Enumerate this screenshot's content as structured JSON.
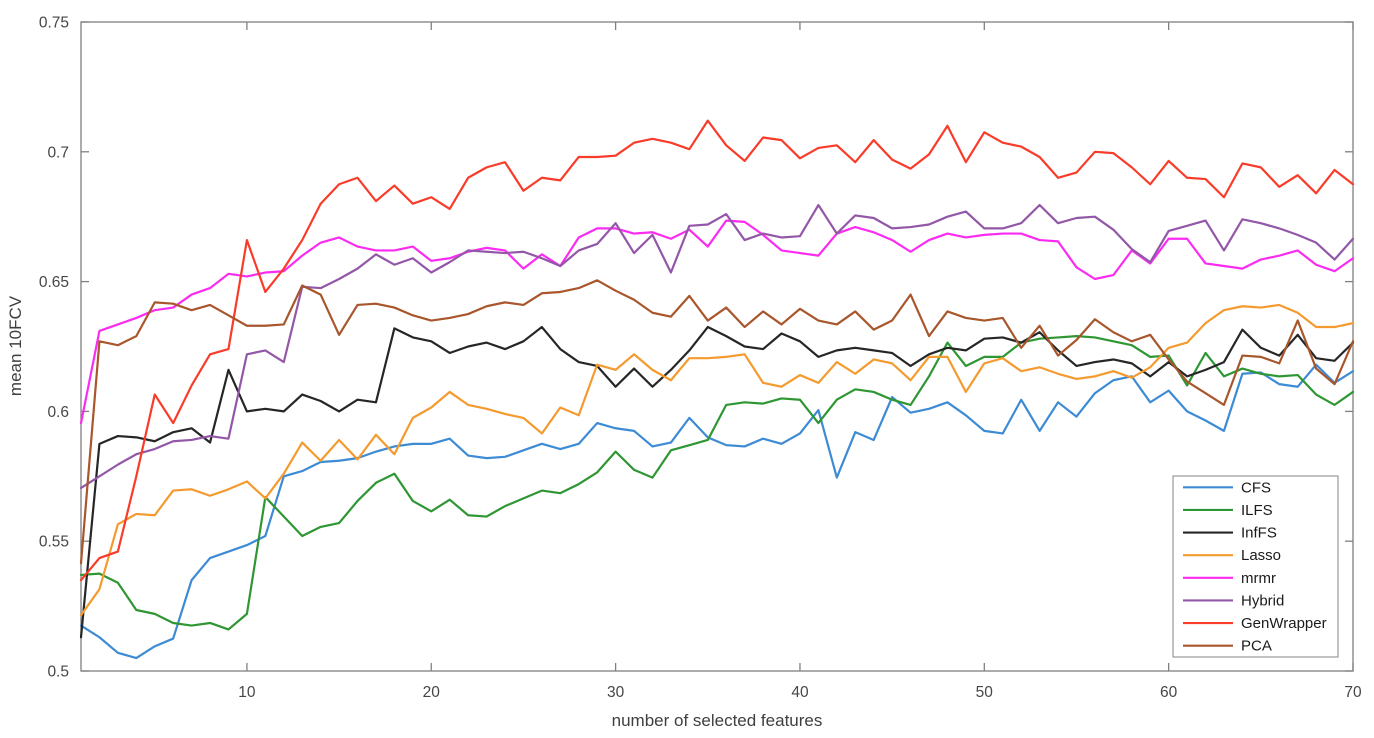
{
  "figure": {
    "background": "#ffffff",
    "axis_color": "#808080",
    "tick_label_color": "#464646",
    "axis_label_color": "#3f3f3f",
    "legend_border_color": "#999999",
    "legend_text_color": "#1a1a1a"
  },
  "chart_data": {
    "type": "line",
    "title": "",
    "xlabel": "number of selected features",
    "ylabel": "mean 10FCV",
    "xlim": [
      1,
      70
    ],
    "ylim": [
      0.5,
      0.75
    ],
    "xticks": [
      10,
      20,
      30,
      40,
      50,
      60,
      70
    ],
    "yticks": [
      0.5,
      0.55,
      0.6,
      0.65,
      0.7,
      0.75
    ],
    "grid": false,
    "box": true,
    "legend_position": "bottom-right",
    "line_width": 2.2,
    "x": [
      1,
      2,
      3,
      4,
      5,
      6,
      7,
      8,
      9,
      10,
      11,
      12,
      13,
      14,
      15,
      16,
      17,
      18,
      19,
      20,
      21,
      22,
      23,
      24,
      25,
      26,
      27,
      28,
      29,
      30,
      31,
      32,
      33,
      34,
      35,
      36,
      37,
      38,
      39,
      40,
      41,
      42,
      43,
      44,
      45,
      46,
      47,
      48,
      49,
      50,
      51,
      52,
      53,
      54,
      55,
      56,
      57,
      58,
      59,
      60,
      61,
      62,
      63,
      64,
      65,
      66,
      67,
      68,
      69,
      70
    ],
    "series": [
      {
        "name": "CFS",
        "color": "#3D8BD4",
        "values": [
          0.5175,
          0.513,
          0.507,
          0.505,
          0.5095,
          0.5125,
          0.535,
          0.5435,
          0.546,
          0.5485,
          0.552,
          0.575,
          0.577,
          0.5805,
          0.581,
          0.582,
          0.5845,
          0.5865,
          0.5875,
          0.5875,
          0.5895,
          0.583,
          0.582,
          0.5825,
          0.585,
          0.5875,
          0.5855,
          0.5875,
          0.5955,
          0.5935,
          0.5925,
          0.5865,
          0.588,
          0.5975,
          0.59,
          0.587,
          0.5865,
          0.5895,
          0.5875,
          0.5915,
          0.6005,
          0.5745,
          0.592,
          0.589,
          0.6055,
          0.5995,
          0.601,
          0.6035,
          0.5985,
          0.5925,
          0.5915,
          0.6045,
          0.5925,
          0.6035,
          0.598,
          0.607,
          0.612,
          0.6135,
          0.6035,
          0.608,
          0.6,
          0.5965,
          0.5925,
          0.6145,
          0.615,
          0.6105,
          0.6095,
          0.618,
          0.611,
          0.6155
        ]
      },
      {
        "name": "ILFS",
        "color": "#2E9632",
        "values": [
          0.537,
          0.5375,
          0.534,
          0.5235,
          0.522,
          0.5185,
          0.5175,
          0.5185,
          0.516,
          0.522,
          0.567,
          0.5595,
          0.552,
          0.5555,
          0.557,
          0.5655,
          0.5725,
          0.576,
          0.5655,
          0.5615,
          0.566,
          0.56,
          0.5595,
          0.5635,
          0.5665,
          0.5695,
          0.5685,
          0.572,
          0.5765,
          0.5845,
          0.5775,
          0.5745,
          0.585,
          0.587,
          0.589,
          0.6025,
          0.6035,
          0.603,
          0.605,
          0.6045,
          0.5955,
          0.6045,
          0.6085,
          0.6075,
          0.6045,
          0.6025,
          0.6135,
          0.6265,
          0.6175,
          0.621,
          0.621,
          0.6265,
          0.628,
          0.6285,
          0.629,
          0.6285,
          0.627,
          0.6255,
          0.621,
          0.6215,
          0.61,
          0.6225,
          0.6135,
          0.6165,
          0.6145,
          0.6135,
          0.614,
          0.6065,
          0.6025,
          0.6075
        ]
      },
      {
        "name": "InfFS",
        "color": "#262626",
        "values": [
          0.513,
          0.5875,
          0.5905,
          0.59,
          0.5885,
          0.592,
          0.5935,
          0.588,
          0.616,
          0.6,
          0.601,
          0.6,
          0.6065,
          0.604,
          0.6,
          0.6045,
          0.6035,
          0.632,
          0.6285,
          0.627,
          0.6225,
          0.625,
          0.6265,
          0.624,
          0.627,
          0.6325,
          0.624,
          0.619,
          0.6175,
          0.6095,
          0.6165,
          0.6095,
          0.616,
          0.6235,
          0.6325,
          0.629,
          0.625,
          0.624,
          0.63,
          0.627,
          0.621,
          0.6235,
          0.6245,
          0.6235,
          0.6225,
          0.6175,
          0.622,
          0.6245,
          0.6235,
          0.628,
          0.6285,
          0.6265,
          0.6305,
          0.6235,
          0.6175,
          0.619,
          0.62,
          0.6185,
          0.6135,
          0.619,
          0.6135,
          0.616,
          0.619,
          0.6315,
          0.6245,
          0.6215,
          0.6295,
          0.6205,
          0.6195,
          0.6265
        ]
      },
      {
        "name": "Lasso",
        "color": "#F49A2E",
        "values": [
          0.5215,
          0.5315,
          0.5565,
          0.5605,
          0.56,
          0.5695,
          0.57,
          0.5675,
          0.57,
          0.573,
          0.5665,
          0.576,
          0.588,
          0.581,
          0.589,
          0.5815,
          0.591,
          0.5835,
          0.5975,
          0.6015,
          0.6075,
          0.6025,
          0.601,
          0.599,
          0.5975,
          0.5915,
          0.6015,
          0.5985,
          0.618,
          0.616,
          0.622,
          0.616,
          0.612,
          0.6205,
          0.6205,
          0.621,
          0.622,
          0.611,
          0.6095,
          0.614,
          0.611,
          0.619,
          0.6145,
          0.62,
          0.6185,
          0.612,
          0.621,
          0.621,
          0.6075,
          0.6185,
          0.6205,
          0.6155,
          0.617,
          0.6145,
          0.6125,
          0.6135,
          0.6155,
          0.613,
          0.617,
          0.6245,
          0.6265,
          0.634,
          0.639,
          0.6405,
          0.64,
          0.641,
          0.638,
          0.6325,
          0.6325,
          0.634
        ]
      },
      {
        "name": "mrmr",
        "color": "#FB2BF1",
        "values": [
          0.5955,
          0.631,
          0.6335,
          0.636,
          0.639,
          0.64,
          0.645,
          0.6475,
          0.653,
          0.652,
          0.6535,
          0.654,
          0.66,
          0.665,
          0.667,
          0.6635,
          0.662,
          0.662,
          0.6635,
          0.658,
          0.659,
          0.6615,
          0.663,
          0.662,
          0.655,
          0.6605,
          0.656,
          0.667,
          0.6705,
          0.6705,
          0.6685,
          0.669,
          0.6665,
          0.67,
          0.6635,
          0.6735,
          0.673,
          0.668,
          0.662,
          0.661,
          0.66,
          0.6685,
          0.671,
          0.669,
          0.666,
          0.6615,
          0.666,
          0.6685,
          0.667,
          0.668,
          0.6685,
          0.6685,
          0.666,
          0.6655,
          0.6555,
          0.651,
          0.6525,
          0.662,
          0.657,
          0.6665,
          0.6665,
          0.657,
          0.656,
          0.655,
          0.6585,
          0.66,
          0.662,
          0.6565,
          0.654,
          0.659
        ]
      },
      {
        "name": "Hybrid",
        "color": "#9357A8",
        "values": [
          0.5705,
          0.575,
          0.5795,
          0.5835,
          0.5855,
          0.5885,
          0.589,
          0.5905,
          0.5895,
          0.622,
          0.6235,
          0.619,
          0.648,
          0.6475,
          0.651,
          0.655,
          0.6605,
          0.6565,
          0.659,
          0.6535,
          0.6575,
          0.662,
          0.6615,
          0.661,
          0.6615,
          0.659,
          0.656,
          0.662,
          0.6645,
          0.6725,
          0.661,
          0.668,
          0.6535,
          0.6715,
          0.672,
          0.676,
          0.666,
          0.6685,
          0.667,
          0.6675,
          0.6795,
          0.6685,
          0.6755,
          0.6745,
          0.6705,
          0.671,
          0.672,
          0.675,
          0.677,
          0.6705,
          0.6705,
          0.6725,
          0.6795,
          0.6725,
          0.6745,
          0.675,
          0.67,
          0.6625,
          0.6575,
          0.6695,
          0.6715,
          0.6735,
          0.662,
          0.674,
          0.6725,
          0.6705,
          0.668,
          0.665,
          0.6585,
          0.6665
        ]
      },
      {
        "name": "GenWrapper",
        "color": "#F93B29",
        "values": [
          0.535,
          0.5435,
          0.546,
          0.575,
          0.6065,
          0.5955,
          0.61,
          0.622,
          0.624,
          0.666,
          0.646,
          0.655,
          0.666,
          0.68,
          0.6875,
          0.69,
          0.681,
          0.687,
          0.68,
          0.6825,
          0.678,
          0.69,
          0.694,
          0.696,
          0.685,
          0.69,
          0.689,
          0.698,
          0.698,
          0.6985,
          0.7035,
          0.705,
          0.7035,
          0.701,
          0.712,
          0.7025,
          0.6965,
          0.7055,
          0.7045,
          0.6975,
          0.7015,
          0.7025,
          0.696,
          0.7045,
          0.697,
          0.6935,
          0.699,
          0.71,
          0.696,
          0.7075,
          0.7035,
          0.702,
          0.698,
          0.69,
          0.692,
          0.7,
          0.6995,
          0.694,
          0.6875,
          0.6965,
          0.69,
          0.6895,
          0.6825,
          0.6955,
          0.694,
          0.6865,
          0.691,
          0.684,
          0.693,
          0.6875
        ]
      },
      {
        "name": "PCA",
        "color": "#A8562C",
        "values": [
          0.5415,
          0.627,
          0.6255,
          0.629,
          0.642,
          0.6415,
          0.639,
          0.641,
          0.637,
          0.633,
          0.633,
          0.6335,
          0.6485,
          0.645,
          0.6295,
          0.641,
          0.6415,
          0.64,
          0.637,
          0.635,
          0.636,
          0.6375,
          0.6405,
          0.642,
          0.641,
          0.6455,
          0.646,
          0.6475,
          0.6505,
          0.6465,
          0.643,
          0.638,
          0.6365,
          0.6445,
          0.635,
          0.64,
          0.6325,
          0.6385,
          0.6335,
          0.6395,
          0.635,
          0.6335,
          0.6385,
          0.6315,
          0.635,
          0.645,
          0.629,
          0.6385,
          0.636,
          0.635,
          0.636,
          0.6245,
          0.633,
          0.6215,
          0.6275,
          0.6355,
          0.6305,
          0.627,
          0.6295,
          0.62,
          0.6115,
          0.607,
          0.6025,
          0.6215,
          0.621,
          0.6185,
          0.635,
          0.6165,
          0.6105,
          0.627
        ]
      }
    ],
    "legend_entries": [
      "CFS",
      "ILFS",
      "InfFS",
      "Lasso",
      "mrmr",
      "Hybrid",
      "GenWrapper",
      "PCA"
    ]
  }
}
